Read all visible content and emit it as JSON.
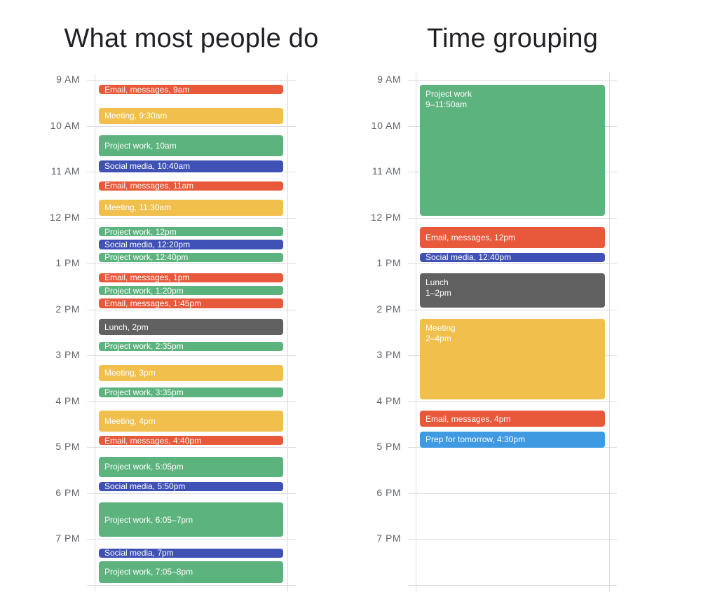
{
  "colors": {
    "email": "#e8583a",
    "meeting": "#f0bf4c",
    "project": "#5db37e",
    "social": "#3f51b5",
    "lunch": "#616161",
    "prep": "#3f9ae2"
  },
  "hours": [
    "9 AM",
    "10 AM",
    "11 AM",
    "12 PM",
    "1 PM",
    "2 PM",
    "3 PM",
    "4 PM",
    "5 PM",
    "6 PM",
    "7 PM"
  ],
  "panels": [
    {
      "title": "What most people do",
      "events": [
        {
          "label": "Email, messages, 9am",
          "type": "email",
          "start": 9.0,
          "end": 9.25
        },
        {
          "label": "Meeting, 9:30am",
          "type": "meeting",
          "start": 9.5,
          "end": 9.9
        },
        {
          "label": "Project work, 10am",
          "type": "project",
          "start": 10.1,
          "end": 10.6
        },
        {
          "label": "Social media, 10:40am",
          "type": "social",
          "start": 10.65,
          "end": 10.95
        },
        {
          "label": "Email, messages, 11am",
          "type": "email",
          "start": 11.1,
          "end": 11.35
        },
        {
          "label": "Meeting, 11:30am",
          "type": "meeting",
          "start": 11.5,
          "end": 11.9
        },
        {
          "label": "Project work, 12pm",
          "type": "project",
          "start": 12.1,
          "end": 12.35
        },
        {
          "label": "Social media, 12:20pm",
          "type": "social",
          "start": 12.38,
          "end": 12.63
        },
        {
          "label": "Project work, 12:40pm",
          "type": "project",
          "start": 12.66,
          "end": 12.91
        },
        {
          "label": "Email, messages, 1pm",
          "type": "email",
          "start": 13.1,
          "end": 13.35
        },
        {
          "label": "Project work, 1:20pm",
          "type": "project",
          "start": 13.38,
          "end": 13.63
        },
        {
          "label": "Email, messages, 1:45pm",
          "type": "email",
          "start": 13.66,
          "end": 13.91
        },
        {
          "label": "Lunch, 2pm",
          "type": "lunch",
          "start": 14.1,
          "end": 14.5
        },
        {
          "label": "Project work, 2:35pm",
          "type": "project",
          "start": 14.6,
          "end": 14.85
        },
        {
          "label": "Meeting, 3pm",
          "type": "meeting",
          "start": 15.1,
          "end": 15.5
        },
        {
          "label": "Project work, 3:35pm",
          "type": "project",
          "start": 15.6,
          "end": 15.85
        },
        {
          "label": "Meeting, 4pm",
          "type": "meeting",
          "start": 16.1,
          "end": 16.6
        },
        {
          "label": "Email, messages, 4:40pm",
          "type": "email",
          "start": 16.65,
          "end": 16.9
        },
        {
          "label": "Project work, 5:05pm",
          "type": "project",
          "start": 17.1,
          "end": 17.6
        },
        {
          "label": "Social media, 5:50pm",
          "type": "social",
          "start": 17.65,
          "end": 17.9
        },
        {
          "label": "Project work, 6:05–7pm",
          "type": "project",
          "start": 18.1,
          "end": 18.9
        },
        {
          "label": "Social media, 7pm",
          "type": "social",
          "start": 19.1,
          "end": 19.35
        },
        {
          "label": "Project work, 7:05–8pm",
          "type": "project",
          "start": 19.38,
          "end": 19.9
        }
      ]
    },
    {
      "title": "Time grouping",
      "events": [
        {
          "label": "Project work",
          "sub": "9–11:50am",
          "type": "project",
          "start": 9.0,
          "end": 11.9
        },
        {
          "label": "Email, messages, 12pm",
          "type": "email",
          "start": 12.1,
          "end": 12.6
        },
        {
          "label": "Social media, 12:40pm",
          "type": "social",
          "start": 12.66,
          "end": 12.91
        },
        {
          "label": "Lunch",
          "sub": "1–2pm",
          "type": "lunch",
          "start": 13.1,
          "end": 13.9
        },
        {
          "label": "Meeting",
          "sub": "2–4pm",
          "type": "meeting",
          "start": 14.1,
          "end": 15.9
        },
        {
          "label": "Email, messages, 4pm",
          "type": "email",
          "start": 16.1,
          "end": 16.5
        },
        {
          "label": "Prep for tomorrow, 4:30pm",
          "type": "prep",
          "start": 16.55,
          "end": 16.95
        }
      ]
    }
  ]
}
